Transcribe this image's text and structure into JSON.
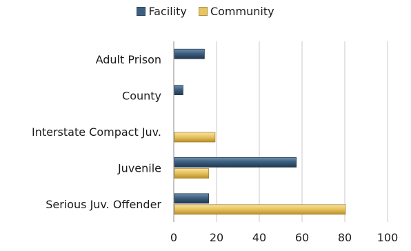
{
  "chart_data": {
    "type": "bar",
    "orientation": "horizontal",
    "categories": [
      "Adult Prison",
      "County",
      "Interstate Compact Juv.",
      "Juvenile",
      "Serious Juv. Offender"
    ],
    "series": [
      {
        "name": "Facility",
        "color": "#3d5f7f",
        "values": [
          14,
          4,
          0,
          57,
          16
        ]
      },
      {
        "name": "Community",
        "color": "#e8c460",
        "values": [
          0,
          0,
          19,
          16,
          80
        ]
      }
    ],
    "xlim": [
      0,
      100
    ],
    "xticks": [
      "0",
      "20",
      "40",
      "60",
      "80",
      "100"
    ],
    "grid": true,
    "legend_position": "top"
  }
}
